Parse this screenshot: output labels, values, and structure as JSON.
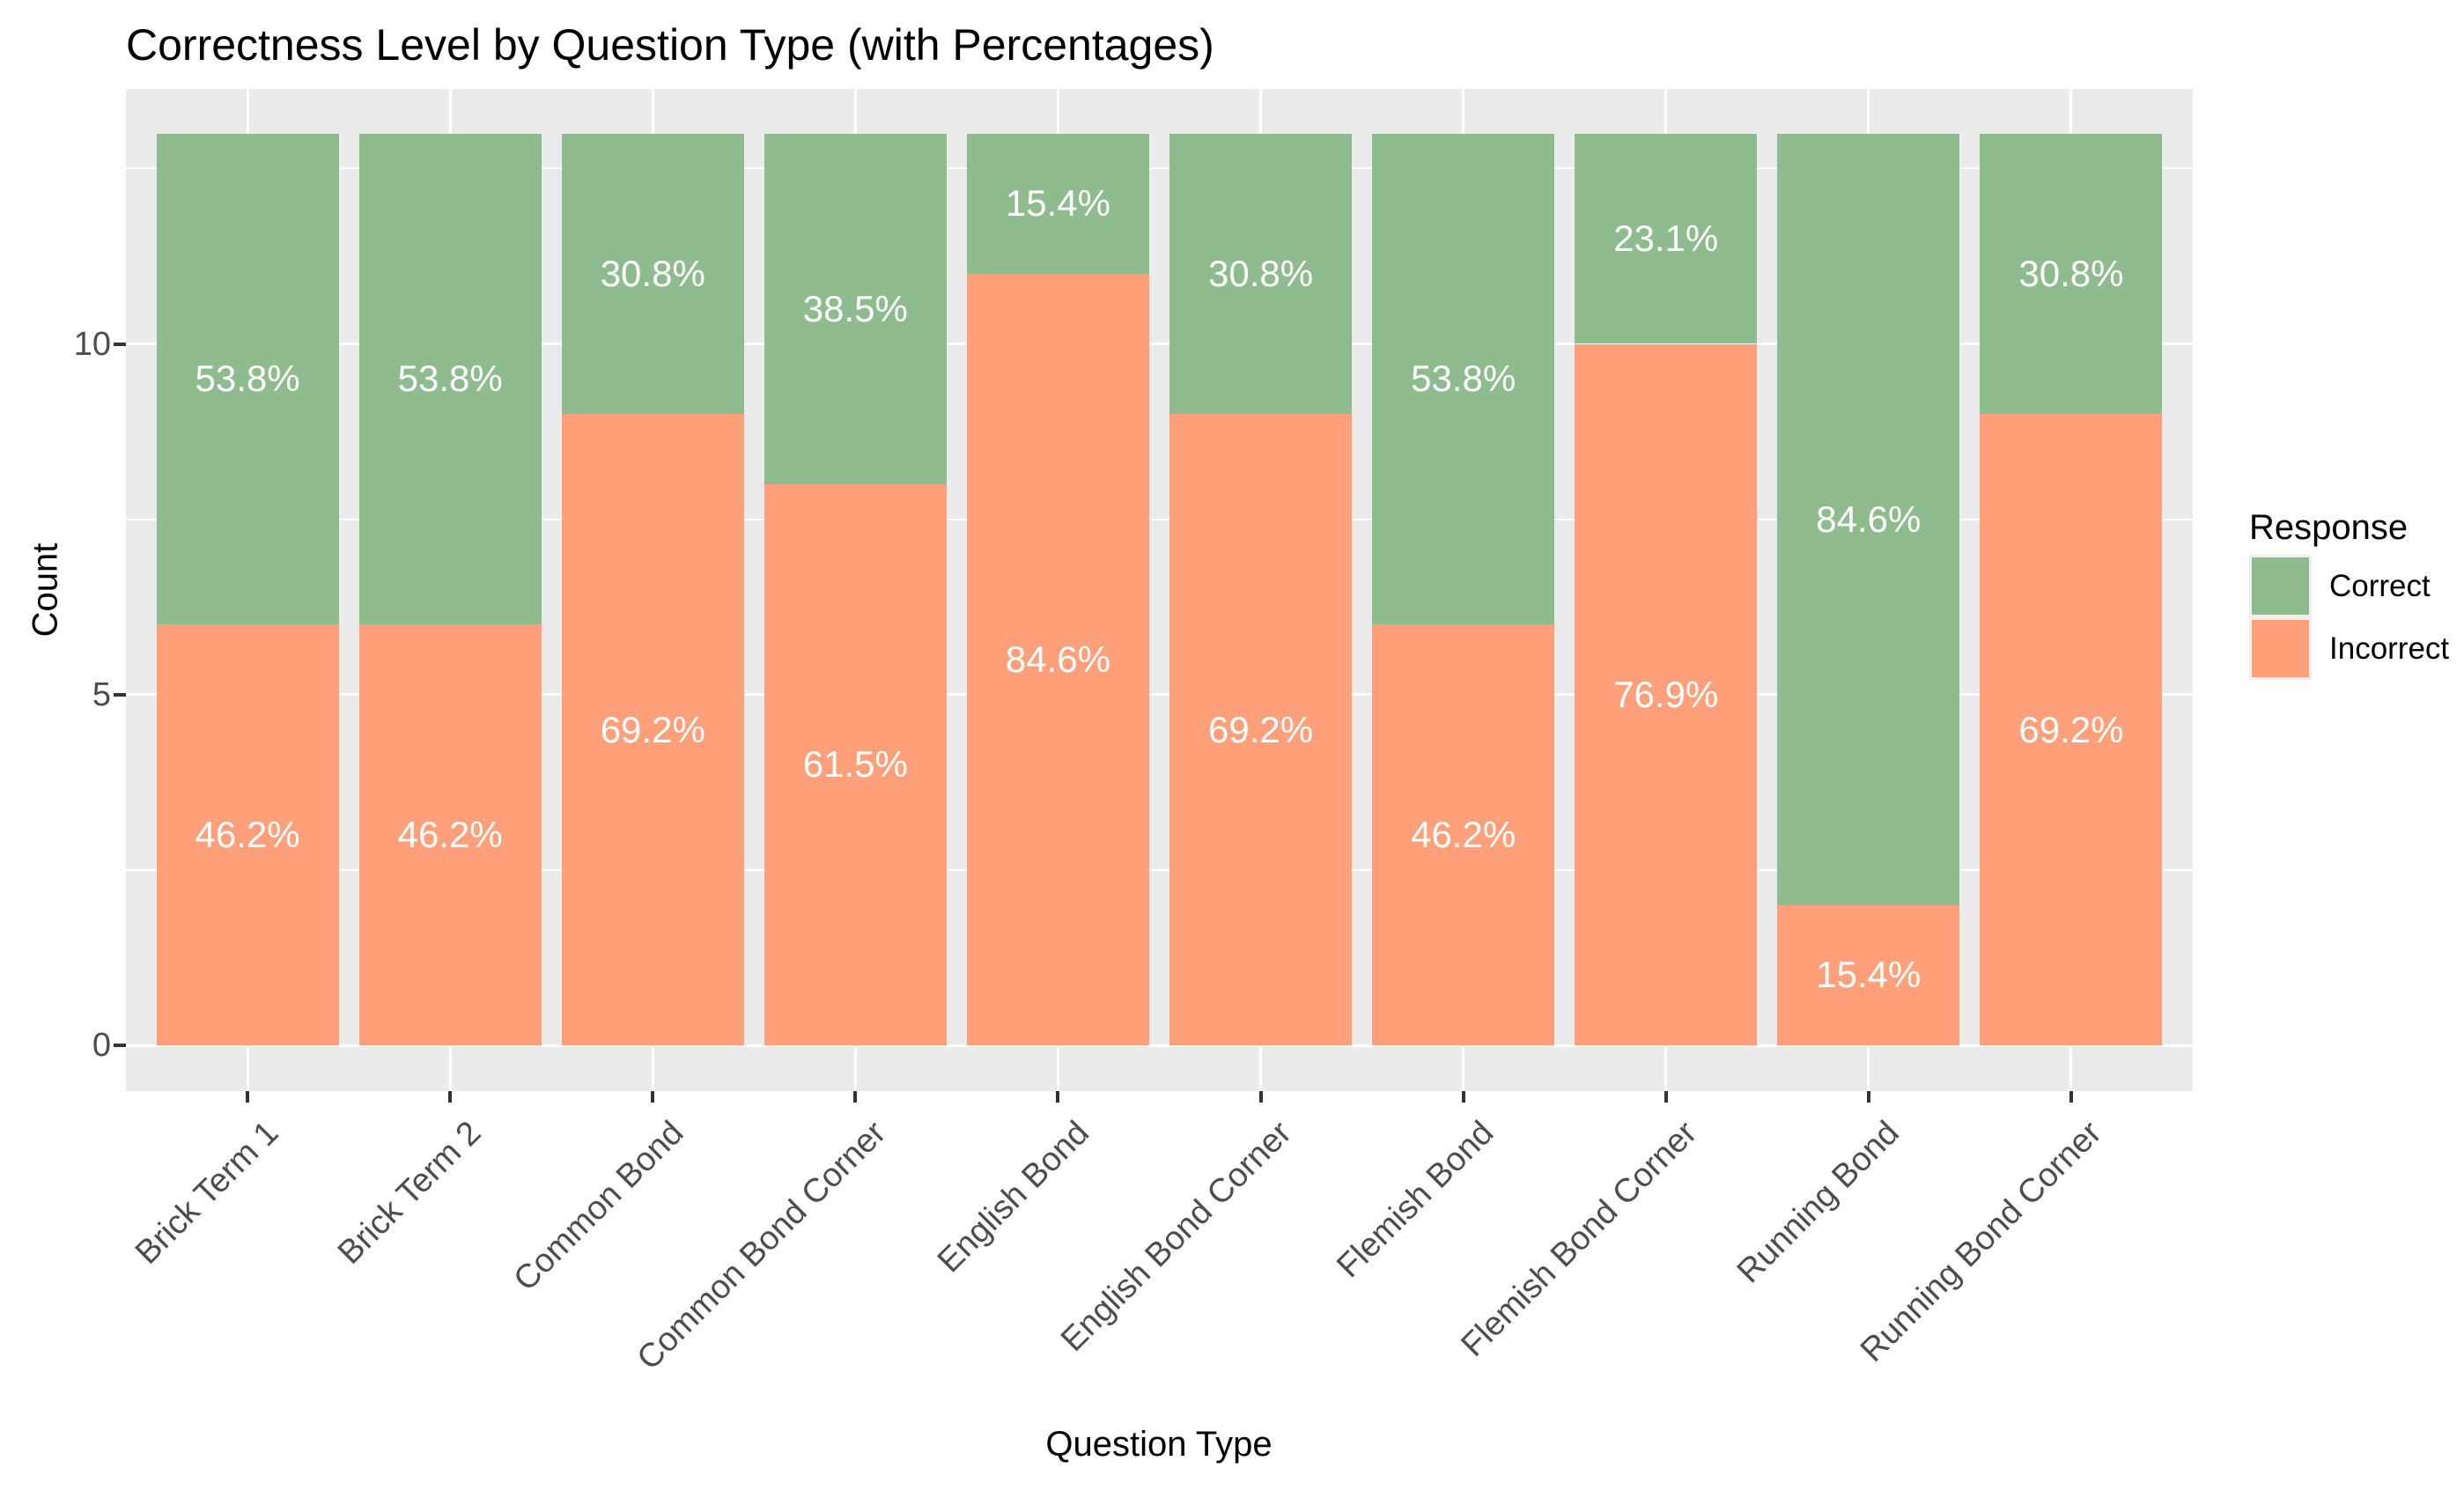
{
  "chart_data": {
    "type": "bar",
    "stacked": true,
    "title": "Correctness Level by Question Type (with Percentages)",
    "xlabel": "Question Type",
    "ylabel": "Count",
    "categories": [
      "Brick Term 1",
      "Brick Term 2",
      "Common Bond",
      "Common Bond Corner",
      "English Bond",
      "English Bond Corner",
      "Flemish Bond",
      "Flemish Bond Corner",
      "Running Bond",
      "Running Bond Corner"
    ],
    "series": [
      {
        "name": "Incorrect",
        "color": "#FFA07A",
        "values": [
          6,
          6,
          9,
          8,
          11,
          9,
          6,
          10,
          2,
          9
        ],
        "percent_labels": [
          "46.2%",
          "46.2%",
          "69.2%",
          "61.5%",
          "84.6%",
          "69.2%",
          "46.2%",
          "76.9%",
          "15.4%",
          "69.2%"
        ]
      },
      {
        "name": "Correct",
        "color": "#8FBC8F",
        "values": [
          7,
          7,
          4,
          5,
          2,
          4,
          7,
          3,
          11,
          4
        ],
        "percent_labels": [
          "53.8%",
          "53.8%",
          "30.8%",
          "38.5%",
          "15.4%",
          "30.8%",
          "53.8%",
          "23.1%",
          "84.6%",
          "30.8%"
        ]
      }
    ],
    "bar_total": 13,
    "y_ticks": [
      0,
      5,
      10
    ],
    "y_minor_ticks": [
      2.5,
      7.5,
      12.5
    ],
    "ylim": [
      0,
      13
    ],
    "grid": true,
    "legend_position": "right",
    "stack_order_bottom_to_top": [
      "Incorrect",
      "Correct"
    ]
  },
  "legend": {
    "title": "Response",
    "items": [
      {
        "label": "Correct",
        "color": "#8FBC8F"
      },
      {
        "label": "Incorrect",
        "color": "#FFA07A"
      }
    ]
  },
  "colors": {
    "panel_background": "#EBEBEB",
    "gridline": "#FFFFFF",
    "bar_label_text": "#FFFFFF",
    "tick_label_text": "#4D4D4D",
    "title_text": "#000000"
  }
}
